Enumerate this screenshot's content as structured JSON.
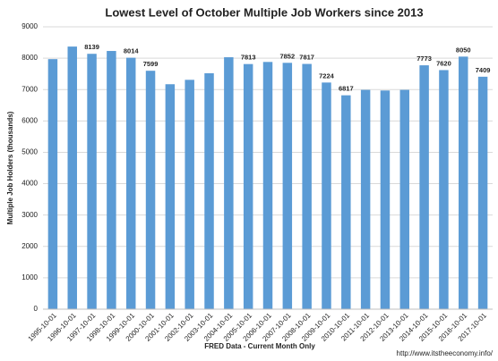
{
  "chart_data": {
    "type": "bar",
    "title": "Lowest Level of October Multiple Job Workers since 2013",
    "y_label": "Multiple Job Holders (thousands)",
    "x_label": "FRED Data - Current Month Only",
    "source": "http://www.itstheeconomy.info/",
    "categories": [
      "1995-10-01",
      "1996-10-01",
      "1997-10-01",
      "1998-10-01",
      "1999-10-01",
      "2000-10-01",
      "2001-10-01",
      "2002-10-01",
      "2003-10-01",
      "2004-10-01",
      "2005-10-01",
      "2006-10-01",
      "2007-10-01",
      "2008-10-01",
      "2009-10-01",
      "2010-10-01",
      "2011-10-01",
      "2012-10-01",
      "2013-10-01",
      "2014-10-01",
      "2015-10-01",
      "2016-10-01",
      "2017-10-01"
    ],
    "values": [
      7970,
      8370,
      8139,
      8230,
      8014,
      7599,
      7170,
      7310,
      7520,
      8030,
      7813,
      7880,
      7852,
      7817,
      7224,
      6817,
      6990,
      6970,
      6990,
      7773,
      7620,
      8050,
      7409
    ],
    "value_labels": [
      null,
      null,
      "8139",
      null,
      "8014",
      "7599",
      null,
      null,
      null,
      null,
      "7813",
      null,
      "7852",
      "7817",
      "7224",
      "6817",
      null,
      null,
      null,
      "7773",
      "7620",
      "8050",
      "7409"
    ],
    "color": "#5b9bd5",
    "ylim": [
      0,
      9000
    ],
    "yticks": [
      0,
      1000,
      2000,
      3000,
      4000,
      5000,
      6000,
      7000,
      8000,
      9000
    ],
    "grid": true
  }
}
